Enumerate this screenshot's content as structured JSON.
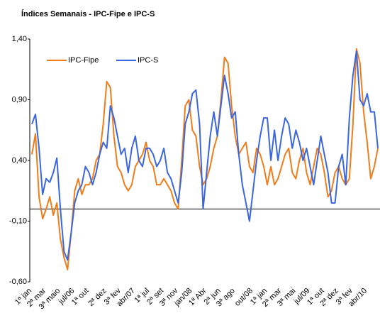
{
  "chart_data": {
    "type": "line",
    "title": "Índices Semanais - IPC-Fipe  e IPC-S",
    "categories": [
      "1ª jan",
      null,
      null,
      null,
      "2ª mar",
      null,
      null,
      null,
      "3ª maio",
      null,
      null,
      null,
      "jul/06",
      null,
      null,
      null,
      "1ª out",
      null,
      null,
      null,
      null,
      "2ª dez",
      null,
      null,
      null,
      "3ª fev",
      null,
      null,
      null,
      "abr/07",
      null,
      null,
      null,
      "1ª jul",
      null,
      null,
      null,
      "2ª set",
      null,
      null,
      null,
      "3ª nov",
      null,
      null,
      null,
      "jan/08",
      null,
      null,
      null,
      "1ª Abr",
      null,
      null,
      null,
      "2ª jun",
      null,
      null,
      null,
      "3ª ago",
      null,
      null,
      null,
      null,
      "out/08",
      null,
      null,
      null,
      "1ª jan",
      null,
      null,
      null,
      "2ª mar",
      null,
      null,
      null,
      "3ª mai",
      null,
      null,
      null,
      "jul/09",
      null,
      null,
      null,
      "1ª out",
      null,
      null,
      null,
      "2ª dez",
      null,
      null,
      null,
      "3ª fev",
      null,
      null,
      null,
      "abr/10",
      null,
      null,
      null
    ],
    "series": [
      {
        "name": "IPC-Fipe",
        "color": "#f07d1a",
        "values": [
          0.45,
          0.62,
          0.1,
          -0.08,
          0.0,
          0.1,
          -0.05,
          0.05,
          -0.25,
          -0.4,
          -0.5,
          -0.2,
          0.15,
          0.25,
          0.12,
          0.2,
          0.2,
          0.25,
          0.4,
          0.45,
          0.7,
          1.05,
          1.0,
          0.6,
          0.35,
          0.3,
          0.2,
          0.15,
          0.2,
          0.35,
          0.4,
          0.45,
          0.55,
          0.4,
          0.35,
          0.2,
          0.2,
          0.25,
          0.2,
          0.15,
          0.05,
          0.0,
          0.4,
          0.85,
          0.9,
          0.65,
          0.6,
          0.35,
          0.2,
          0.25,
          0.35,
          0.5,
          0.6,
          0.9,
          1.25,
          1.2,
          0.85,
          0.6,
          0.45,
          0.5,
          0.55,
          0.35,
          0.3,
          0.5,
          0.45,
          0.35,
          0.2,
          0.35,
          0.2,
          0.25,
          0.35,
          0.45,
          0.5,
          0.3,
          0.25,
          0.4,
          0.5,
          0.3,
          0.2,
          0.35,
          0.5,
          0.45,
          0.3,
          0.1,
          0.15,
          0.3,
          0.35,
          0.25,
          0.2,
          0.25,
          0.7,
          1.32,
          1.2,
          0.8,
          0.55,
          0.25,
          0.35,
          0.5
        ]
      },
      {
        "name": "IPC-S",
        "color": "#3a66e0",
        "values": [
          0.7,
          0.78,
          0.5,
          0.12,
          0.25,
          0.22,
          0.3,
          0.42,
          0.0,
          -0.35,
          -0.42,
          -0.2,
          0.05,
          0.15,
          0.2,
          0.35,
          0.3,
          0.2,
          0.3,
          0.45,
          0.55,
          0.5,
          0.85,
          0.75,
          0.6,
          0.45,
          0.5,
          0.3,
          0.5,
          0.6,
          0.4,
          0.35,
          0.5,
          0.5,
          0.45,
          0.35,
          0.4,
          0.5,
          0.3,
          0.25,
          0.15,
          0.05,
          0.3,
          0.7,
          0.8,
          0.95,
          0.98,
          0.7,
          0.0,
          0.3,
          0.6,
          0.8,
          0.6,
          0.85,
          1.1,
          0.95,
          0.75,
          0.8,
          0.45,
          0.2,
          0.05,
          -0.1,
          0.15,
          0.4,
          0.6,
          0.75,
          0.75,
          0.4,
          0.65,
          0.4,
          0.6,
          0.75,
          0.7,
          0.5,
          0.65,
          0.55,
          0.4,
          0.5,
          0.35,
          0.2,
          0.4,
          0.6,
          0.45,
          0.3,
          0.05,
          0.05,
          0.35,
          0.45,
          0.2,
          0.75,
          1.1,
          1.3,
          0.9,
          0.85,
          0.95,
          0.8,
          0.8,
          0.5
        ]
      }
    ],
    "ylim": [
      -0.6,
      1.4
    ],
    "yticks": [
      {
        "value": -0.6,
        "label": "-0,60"
      },
      {
        "value": -0.1,
        "label": "-0,10"
      },
      {
        "value": 0.4,
        "label": "0,40"
      },
      {
        "value": 0.9,
        "label": "0,90"
      },
      {
        "value": 1.4,
        "label": "1,40"
      }
    ],
    "baseline": 0,
    "grid": false,
    "legend": "top-left"
  }
}
